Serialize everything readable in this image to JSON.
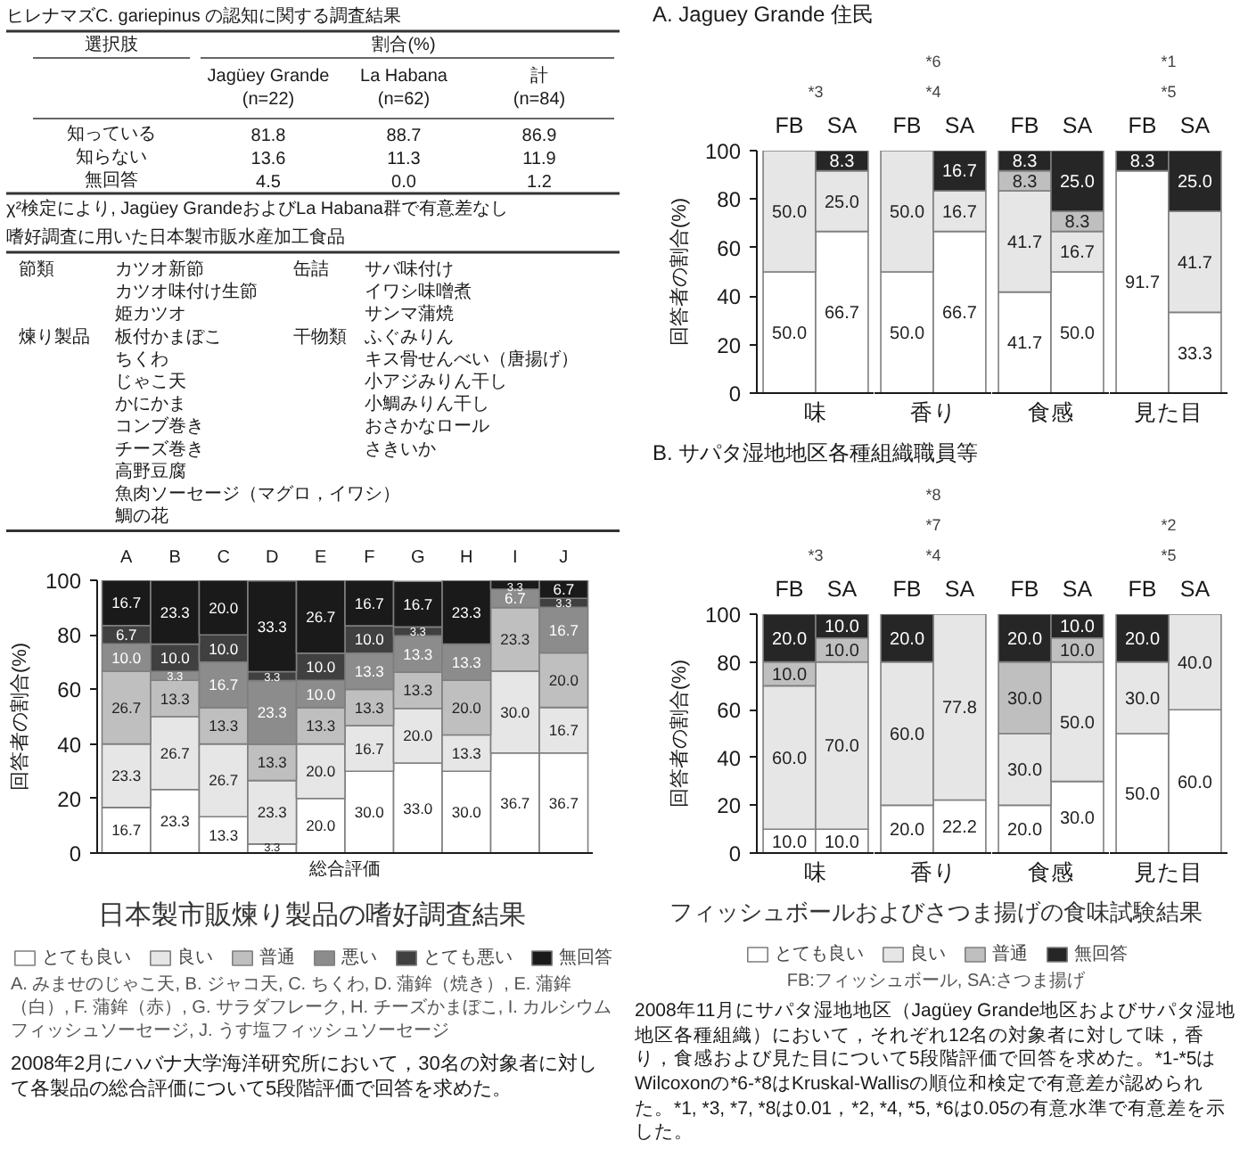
{
  "chart_data": [
    {
      "type": "other",
      "title": "ヒレナマズC. gariepinus の認知に関する調査結果",
      "xlabel": "割合(%)",
      "ylabel": "選択肢",
      "categories": [
        "知っている",
        "知らない",
        "無回答"
      ],
      "series": [
        {
          "name": "Jagüey Grande\n(n=22)",
          "values": [
            81.8,
            13.6,
            4.5
          ],
          "value_labels": [
            "81.8",
            "13.6",
            "4.5"
          ]
        },
        {
          "name": "La Habana\n(n=62)",
          "values": [
            88.7,
            11.3,
            0.0
          ],
          "value_labels": [
            "88.7",
            "11.3",
            "0.0"
          ]
        },
        {
          "name": "計\n(n=84)",
          "values": [
            86.9,
            11.9,
            1.2
          ],
          "value_labels": [
            "86.9",
            "11.9",
            "1.2"
          ]
        }
      ],
      "annotations": [
        "χ²検定により, Jagüey GrandeおよびLa Habana群で有意差なし"
      ]
    },
    {
      "type": "other",
      "title": "嗜好調査に用いた日本製市販水産加工食品",
      "annotations": [
        "節類\tカツオ新節\t缶詰\tサバ味付け",
        "\tカツオ味付け生節\t\tイワシ味噌煮",
        "\t姫カツオ\t\tサンマ蒲焼",
        "煉り製品\t板付かまぼこ\t干物類\tふぐみりん",
        "\tちくわ\t\tキス骨せんべい（唐揚げ）",
        "\tじゃこ天\t\t小アジみりん干し",
        "\tかにかま\t\t小鯛みりん干し",
        "\tコンブ巻き\t\tおさかなロール",
        "\tチーズ巻き\t\tさきいか",
        "\t高野豆腐",
        "\t魚肉ソーセージ（マグロ，イワシ）",
        "\t鯛の花"
      ]
    },
    {
      "type": "bar",
      "stacked": true,
      "title": "日本製市販煉り製品の嗜好調査結果",
      "ylabel": "回答者の割合(%)",
      "xlabel": "総合評価",
      "categories": [
        "A",
        "B",
        "C",
        "D",
        "E",
        "F",
        "G",
        "H",
        "I",
        "J"
      ],
      "ylim": [
        0,
        100
      ],
      "yticks": [
        0,
        20,
        40,
        60,
        80,
        100
      ],
      "legend": "bottom",
      "annotations": [
        "A. みませのじゃこ天, B. ジャコ天, C. ちくわ, D. 蒲鉾（焼き）, E. 蒲鉾（白）, F. 蒲鉾（赤）, G. サラダフレーク, H. チーズかまぼこ, I. カルシウムフィッシュソーセージ, J. うす塩フィッシュソーセージ",
        "2008年2月にハバナ大学海洋研究所において，30名の対象者に対して各製品の総合評価について5段階評価で回答を求めた。"
      ],
      "series": [
        {
          "name": "とても良い",
          "color": "#ffffff",
          "values": [
            16.7,
            23.3,
            13.3,
            3.3,
            20.0,
            30.0,
            33.0,
            30.0,
            36.7,
            36.7
          ],
          "value_labels": [
            "16.7",
            "23.3",
            "13.3",
            "3.3",
            "20.0",
            "30.0",
            "33.0",
            "30.0",
            "36.7",
            "36.7"
          ]
        },
        {
          "name": "良い",
          "color": "#e6e6e6",
          "values": [
            23.3,
            26.7,
            26.7,
            23.3,
            20.0,
            16.7,
            20.0,
            13.3,
            30.0,
            16.7
          ],
          "value_labels": [
            "23.3",
            "26.7",
            "26.7",
            "23.3",
            "20.0",
            "16.7",
            "20.0",
            "13.3",
            "30.0",
            "16.7"
          ]
        },
        {
          "name": "普通",
          "color": "#bfbfbf",
          "values": [
            26.7,
            13.3,
            13.3,
            13.3,
            13.3,
            13.3,
            13.3,
            20.0,
            23.3,
            20.0
          ],
          "value_labels": [
            "26.7",
            "13.3",
            "13.3",
            "13.3",
            "13.3",
            "13.3",
            "13.3",
            "20.0",
            "23.3",
            "20.0"
          ]
        },
        {
          "name": "悪い",
          "color": "#8c8c8c",
          "values": [
            10.0,
            3.3,
            16.7,
            23.3,
            10.0,
            13.3,
            13.3,
            13.3,
            6.7,
            16.7
          ],
          "value_labels": [
            "10.0",
            "3.3",
            "16.7",
            "23.3",
            "10.0",
            "13.3",
            "13.3",
            "13.3",
            "6.7",
            "16.7"
          ]
        },
        {
          "name": "とても悪い",
          "color": "#404040",
          "values": [
            6.7,
            10.0,
            10.0,
            3.3,
            10.0,
            10.0,
            3.3,
            null,
            null,
            3.3
          ],
          "value_labels": [
            "6.7",
            "10.0",
            "10.0",
            "3.3",
            "10.0",
            "10.0",
            "3.3",
            null,
            null,
            "3.3"
          ]
        },
        {
          "name": "無回答",
          "color": "#1a1a1a",
          "values": [
            16.7,
            23.3,
            20.0,
            33.3,
            26.7,
            16.7,
            16.7,
            23.3,
            3.3,
            6.7
          ],
          "value_labels": [
            "16.7",
            "23.3",
            "20.0",
            "33.3",
            "26.7",
            "16.7",
            "16.7",
            "23.3",
            "3.3",
            "6.7"
          ]
        }
      ]
    },
    {
      "type": "bar",
      "stacked": true,
      "title": "A. Jaguey Grande 住民",
      "ylabel": "回答者の割合(%)",
      "xlabel": "味",
      "categories": [
        "FB",
        "SA"
      ],
      "ylim": [
        0,
        100
      ],
      "yticks": [
        0,
        20,
        40,
        60,
        80,
        100
      ],
      "annotations": [
        "*3"
      ],
      "series": [
        {
          "color": "#ffffff",
          "values": [
            50.0,
            66.7
          ],
          "value_labels": [
            "50.0",
            "66.7"
          ]
        },
        {
          "color": "#e6e6e6",
          "values": [
            50.0,
            25.0
          ],
          "value_labels": [
            "50.0",
            "25.0"
          ]
        },
        {
          "color": "#262626",
          "values": [
            null,
            8.3
          ],
          "value_labels": [
            null,
            "8.3"
          ]
        }
      ]
    },
    {
      "type": "bar",
      "stacked": true,
      "xlabel": "香り",
      "categories": [
        "FB",
        "SA"
      ],
      "ylim": [
        0,
        100
      ],
      "tick_labels": "x",
      "annotations": [
        "*4",
        "*6"
      ],
      "series": [
        {
          "color": "#ffffff",
          "values": [
            50.0,
            66.7
          ],
          "value_labels": [
            "50.0",
            "66.7"
          ]
        },
        {
          "color": "#e6e6e6",
          "values": [
            50.0,
            16.7
          ],
          "value_labels": [
            "50.0",
            "16.7"
          ]
        },
        {
          "color": "#262626",
          "values": [
            null,
            16.7
          ],
          "value_labels": [
            null,
            "16.7"
          ]
        }
      ]
    },
    {
      "type": "bar",
      "stacked": true,
      "xlabel": "食感",
      "categories": [
        "FB",
        "SA"
      ],
      "ylim": [
        0,
        100
      ],
      "tick_labels": "x",
      "series": [
        {
          "color": "#ffffff",
          "values": [
            41.7,
            50.0
          ],
          "value_labels": [
            "41.7",
            "50.0"
          ]
        },
        {
          "color": "#e6e6e6",
          "values": [
            41.7,
            16.7
          ],
          "value_labels": [
            "41.7",
            "16.7"
          ]
        },
        {
          "color": "#bfbfbf",
          "values": [
            8.3,
            8.3
          ],
          "value_labels": [
            "8.3",
            "8.3"
          ]
        },
        {
          "color": "#262626",
          "values": [
            8.3,
            25.0
          ],
          "value_labels": [
            "8.3",
            "25.0"
          ]
        }
      ]
    },
    {
      "type": "bar",
      "stacked": true,
      "xlabel": "見た目",
      "categories": [
        "FB",
        "SA"
      ],
      "ylim": [
        0,
        100
      ],
      "tick_labels": "x",
      "annotations": [
        "*5",
        "*1"
      ],
      "series": [
        {
          "color": "#ffffff",
          "values": [
            91.7,
            33.3
          ],
          "value_labels": [
            "91.7",
            "33.3"
          ]
        },
        {
          "color": "#e6e6e6",
          "values": [
            null,
            41.7
          ],
          "value_labels": [
            null,
            "41.7"
          ]
        },
        {
          "color": "#262626",
          "values": [
            8.3,
            25.0
          ],
          "value_labels": [
            "8.3",
            "25.0"
          ]
        }
      ]
    },
    {
      "type": "bar",
      "stacked": true,
      "title": "B. サパタ湿地地区各種組織職員等",
      "ylabel": "回答者の割合(%)",
      "xlabel": "味",
      "categories": [
        "FB",
        "SA"
      ],
      "ylim": [
        0,
        100
      ],
      "yticks": [
        0,
        20,
        40,
        60,
        80,
        100
      ],
      "legend": "bottom",
      "annotations": [
        "*3"
      ],
      "series": [
        {
          "name": "とても良い",
          "color": "#ffffff",
          "values": [
            10.0,
            10.0
          ],
          "value_labels": [
            "10.0",
            "10.0"
          ]
        },
        {
          "name": "良い",
          "color": "#e6e6e6",
          "values": [
            60.0,
            70.0
          ],
          "value_labels": [
            "60.0",
            "70.0"
          ]
        },
        {
          "name": "普通",
          "color": "#bfbfbf",
          "values": [
            10.0,
            10.0
          ],
          "value_labels": [
            "10.0",
            "10.0"
          ]
        },
        {
          "name": "無回答",
          "color": "#262626",
          "values": [
            20.0,
            10.0
          ],
          "value_labels": [
            "20.0",
            "10.0"
          ]
        }
      ]
    },
    {
      "type": "bar",
      "stacked": true,
      "xlabel": "香り",
      "categories": [
        "FB",
        "SA"
      ],
      "ylim": [
        0,
        100
      ],
      "tick_labels": "x",
      "annotations": [
        "*4",
        "*7",
        "*8"
      ],
      "series": [
        {
          "name": "とても良い",
          "color": "#ffffff",
          "values": [
            20.0,
            22.2
          ],
          "value_labels": [
            "20.0",
            "22.2"
          ]
        },
        {
          "name": "良い",
          "color": "#e6e6e6",
          "values": [
            60.0,
            77.8
          ],
          "value_labels": [
            "60.0",
            "77.8"
          ]
        },
        {
          "name": "無回答",
          "color": "#262626",
          "values": [
            20.0,
            null
          ],
          "value_labels": [
            "20.0",
            null
          ]
        }
      ]
    },
    {
      "type": "bar",
      "stacked": true,
      "xlabel": "食感",
      "categories": [
        "FB",
        "SA"
      ],
      "ylim": [
        0,
        100
      ],
      "tick_labels": "x",
      "series": [
        {
          "name": "とても良い",
          "color": "#ffffff",
          "values": [
            20.0,
            30.0
          ],
          "value_labels": [
            "20.0",
            "30.0"
          ]
        },
        {
          "name": "良い",
          "color": "#e6e6e6",
          "values": [
            30.0,
            50.0
          ],
          "value_labels": [
            "30.0",
            "50.0"
          ]
        },
        {
          "name": "普通",
          "color": "#bfbfbf",
          "values": [
            30.0,
            10.0
          ],
          "value_labels": [
            "30.0",
            "10.0"
          ]
        },
        {
          "name": "無回答",
          "color": "#262626",
          "values": [
            20.0,
            10.0
          ],
          "value_labels": [
            "20.0",
            "10.0"
          ]
        }
      ]
    },
    {
      "type": "bar",
      "stacked": true,
      "xlabel": "見た目",
      "categories": [
        "FB",
        "SA"
      ],
      "ylim": [
        0,
        100
      ],
      "tick_labels": "x",
      "annotations": [
        "*5",
        "*2"
      ],
      "series": [
        {
          "name": "とても良い",
          "color": "#ffffff",
          "values": [
            50.0,
            60.0
          ],
          "value_labels": [
            "50.0",
            "60.0"
          ]
        },
        {
          "name": "良い",
          "color": "#e6e6e6",
          "values": [
            30.0,
            40.0
          ],
          "value_labels": [
            "30.0",
            "40.0"
          ]
        },
        {
          "name": "無回答",
          "color": "#262626",
          "values": [
            20.0,
            null
          ],
          "value_labels": [
            "20.0",
            null
          ]
        }
      ]
    },
    {
      "type": "other",
      "title": "フィッシュボールおよびさつま揚げの食味試験結果",
      "annotations": [
        "FB:フィッシュボール, SA:さつま揚げ",
        "2008年11月にサパタ湿地地区（Jagüey Grande地区およびサパタ湿地地区各種組織）において，それぞれ12名の対象者に対して味，香り，食感および見た目について5段階評価で回答を求めた。*1-*5はWilcoxonの*6-*8はKruskal-Wallisの順位和検定で有意差が認められた。*1, *3, *7, *8は0.01，*2, *4, *5, *6は0.05の有意水準で有意差を示した。"
      ]
    }
  ]
}
